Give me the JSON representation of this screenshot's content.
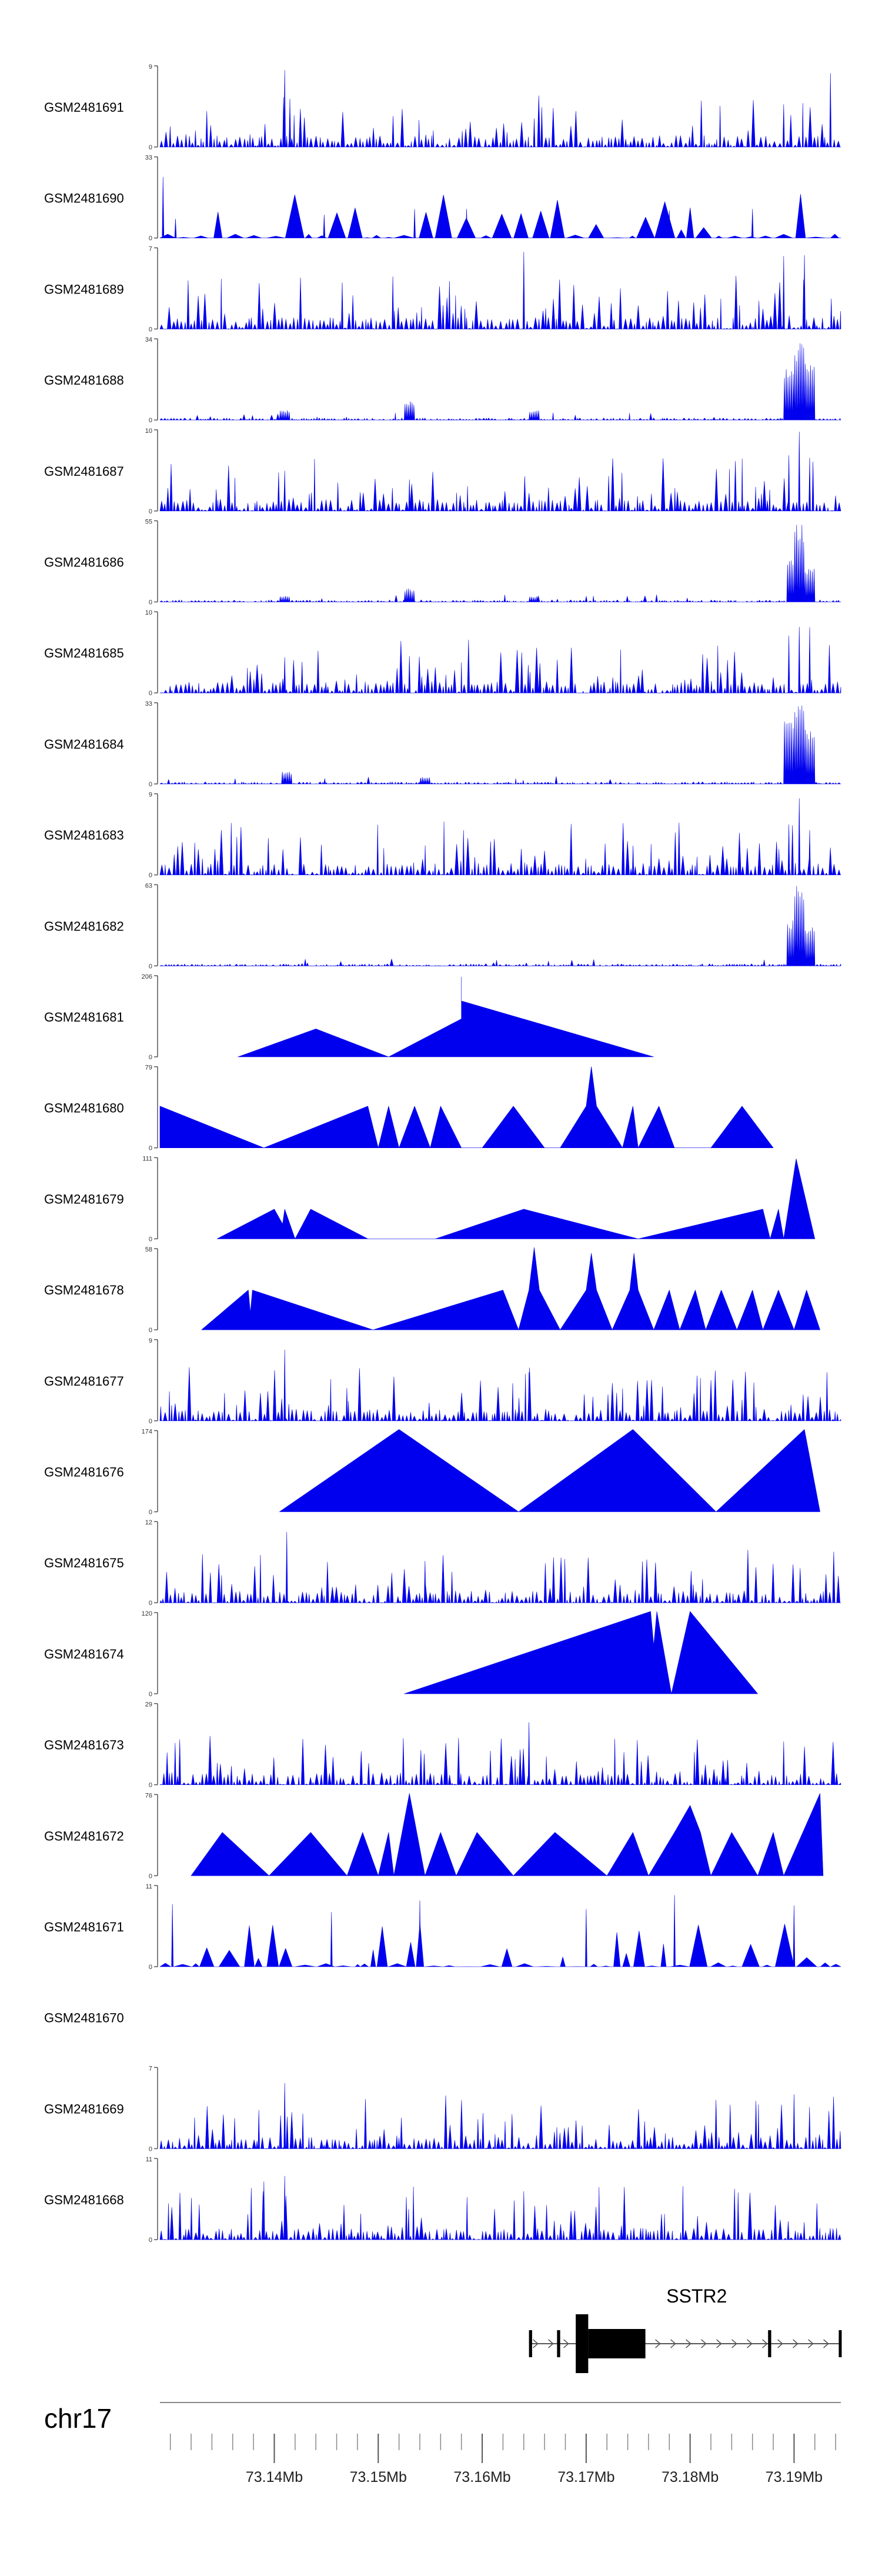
{
  "chart_data": {
    "type": "area",
    "title": "",
    "chromosome": "chr17",
    "x_unit": "Mb",
    "xlim": [
      73.129,
      73.1945
    ],
    "x_ticks": [
      73.14,
      73.15,
      73.16,
      73.17,
      73.18,
      73.19
    ],
    "x_tick_labels": [
      "73.14Mb",
      "73.15Mb",
      "73.16Mb",
      "73.17Mb",
      "73.18Mb",
      "73.19Mb"
    ],
    "minor_tick_step": 0.002,
    "track_fill_color": "#0000ee",
    "axis_color": "#555555",
    "tracks": [
      {
        "name": "GSM2481691",
        "ymax": 9,
        "style": "dense",
        "peaks": [
          [
            73.141,
            8.5
          ],
          [
            73.1415,
            6.5
          ],
          [
            73.165,
            3.5
          ],
          [
            73.1935,
            8.5
          ],
          [
            73.189,
            5.0
          ]
        ]
      },
      {
        "name": "GSM2481690",
        "ymax": 33,
        "style": "sparse",
        "peaks": [
          [
            73.1293,
            27
          ],
          [
            73.1305,
            9
          ],
          [
            73.1448,
            10
          ],
          [
            73.1535,
            12
          ],
          [
            73.1585,
            12
          ],
          [
            73.178,
            12
          ],
          [
            73.186,
            12
          ]
        ]
      },
      {
        "name": "GSM2481689",
        "ymax": 7,
        "style": "dense",
        "peaks": [
          [
            73.164,
            6.8
          ],
          [
            73.189,
            6.5
          ],
          [
            73.191,
            6.9
          ]
        ]
      },
      {
        "name": "GSM2481688",
        "ymax": 34,
        "style": "peaked",
        "peaks": [
          [
            73.141,
            4
          ],
          [
            73.153,
            8
          ],
          [
            73.165,
            4
          ],
          [
            73.1895,
            22
          ],
          [
            73.1905,
            32
          ],
          [
            73.1915,
            25
          ]
        ]
      },
      {
        "name": "GSM2481687",
        "ymax": 10,
        "style": "dense",
        "peaks": [
          [
            73.141,
            5
          ],
          [
            73.153,
            5
          ],
          [
            73.1895,
            8
          ],
          [
            73.1905,
            9.8
          ],
          [
            73.1915,
            8
          ]
        ]
      },
      {
        "name": "GSM2481686",
        "ymax": 55,
        "style": "peaked",
        "peaks": [
          [
            73.141,
            4
          ],
          [
            73.153,
            9
          ],
          [
            73.165,
            4
          ],
          [
            73.1898,
            30
          ],
          [
            73.1905,
            53
          ],
          [
            73.1915,
            25
          ]
        ]
      },
      {
        "name": "GSM2481685",
        "ymax": 10,
        "style": "dense",
        "peaks": [
          [
            73.141,
            5
          ],
          [
            73.153,
            5
          ],
          [
            73.1895,
            8
          ],
          [
            73.1905,
            9.8
          ],
          [
            73.1915,
            8
          ]
        ]
      },
      {
        "name": "GSM2481684",
        "ymax": 33,
        "style": "peaked",
        "peaks": [
          [
            73.1412,
            5
          ],
          [
            73.1545,
            3
          ],
          [
            73.1895,
            26
          ],
          [
            73.1905,
            32
          ],
          [
            73.1915,
            22
          ]
        ]
      },
      {
        "name": "GSM2481683",
        "ymax": 9,
        "style": "dense",
        "peaks": [
          [
            73.1895,
            7
          ],
          [
            73.1905,
            8.8
          ],
          [
            73.1915,
            6
          ]
        ]
      },
      {
        "name": "GSM2481682",
        "ymax": 63,
        "style": "peaked",
        "peaks": [
          [
            73.1898,
            35
          ],
          [
            73.1905,
            62
          ],
          [
            73.1915,
            30
          ]
        ]
      },
      {
        "name": "GSM2481681",
        "ymax": 206,
        "style": "polygon",
        "points": [
          [
            73.1365,
            0
          ],
          [
            73.144,
            70
          ],
          [
            73.151,
            0
          ],
          [
            73.158,
            95
          ],
          [
            73.158,
            200
          ],
          [
            73.158,
            140
          ],
          [
            73.1765,
            0
          ]
        ]
      },
      {
        "name": "GSM2481680",
        "ymax": 79,
        "style": "polygon",
        "points": [
          [
            73.129,
            40
          ],
          [
            73.139,
            0
          ],
          [
            73.149,
            40
          ],
          [
            73.15,
            0
          ],
          [
            73.151,
            40
          ],
          [
            73.152,
            0
          ],
          [
            73.1535,
            40
          ],
          [
            73.155,
            0
          ],
          [
            73.156,
            40
          ],
          [
            73.158,
            0
          ],
          [
            73.16,
            0
          ],
          [
            73.163,
            40
          ],
          [
            73.166,
            0
          ],
          [
            73.1675,
            0
          ],
          [
            73.17,
            40
          ],
          [
            73.1705,
            78
          ],
          [
            73.171,
            40
          ],
          [
            73.1735,
            0
          ],
          [
            73.1745,
            40
          ],
          [
            73.175,
            0
          ],
          [
            73.177,
            40
          ],
          [
            73.1785,
            0
          ],
          [
            73.182,
            0
          ],
          [
            73.185,
            40
          ],
          [
            73.188,
            0
          ]
        ]
      },
      {
        "name": "GSM2481679",
        "ymax": 111,
        "style": "polygon",
        "points": [
          [
            73.1345,
            0
          ],
          [
            73.14,
            40
          ],
          [
            73.1408,
            20
          ],
          [
            73.141,
            40
          ],
          [
            73.142,
            0
          ],
          [
            73.1435,
            40
          ],
          [
            73.149,
            0
          ],
          [
            73.1555,
            0
          ],
          [
            73.164,
            40
          ],
          [
            73.175,
            0
          ],
          [
            73.187,
            40
          ],
          [
            73.1877,
            0
          ],
          [
            73.1885,
            40
          ],
          [
            73.189,
            0
          ],
          [
            73.1902,
            108
          ],
          [
            73.192,
            0
          ]
        ]
      },
      {
        "name": "GSM2481678",
        "ymax": 58,
        "style": "polygon",
        "points": [
          [
            73.133,
            0
          ],
          [
            73.1375,
            28
          ],
          [
            73.1377,
            12
          ],
          [
            73.1379,
            28
          ],
          [
            73.1495,
            0
          ],
          [
            73.162,
            28
          ],
          [
            73.1635,
            0
          ],
          [
            73.1645,
            28
          ],
          [
            73.165,
            58
          ],
          [
            73.1655,
            28
          ],
          [
            73.1675,
            0
          ],
          [
            73.17,
            28
          ],
          [
            73.1705,
            54
          ],
          [
            73.171,
            28
          ],
          [
            73.1725,
            0
          ],
          [
            73.1742,
            28
          ],
          [
            73.1746,
            54
          ],
          [
            73.175,
            28
          ],
          [
            73.1765,
            0
          ],
          [
            73.178,
            28
          ],
          [
            73.179,
            0
          ],
          [
            73.1805,
            28
          ],
          [
            73.1815,
            0
          ],
          [
            73.183,
            28
          ],
          [
            73.1845,
            0
          ],
          [
            73.186,
            28
          ],
          [
            73.187,
            0
          ],
          [
            73.1885,
            28
          ],
          [
            73.19,
            0
          ],
          [
            73.1912,
            28
          ],
          [
            73.1925,
            0
          ]
        ]
      },
      {
        "name": "GSM2481677",
        "ymax": 9,
        "style": "dense",
        "peaks": [
          [
            73.141,
            8.8
          ],
          [
            73.1645,
            5.5
          ],
          [
            73.185,
            3
          ]
        ]
      },
      {
        "name": "GSM2481676",
        "ymax": 174,
        "style": "polygon",
        "points": [
          [
            73.1405,
            0
          ],
          [
            73.152,
            174
          ],
          [
            73.1635,
            0
          ],
          [
            73.1745,
            174
          ],
          [
            73.1825,
            0
          ],
          [
            73.191,
            174
          ],
          [
            73.1925,
            0
          ]
        ]
      },
      {
        "name": "GSM2481675",
        "ymax": 12,
        "style": "dense",
        "peaks": [
          [
            73.1412,
            11.5
          ],
          [
            73.1412,
            9
          ],
          [
            73.1545,
            7
          ]
        ]
      },
      {
        "name": "GSM2481674",
        "ymax": 120,
        "style": "polygon",
        "points": [
          [
            73.1525,
            0
          ],
          [
            73.1762,
            120
          ],
          [
            73.1765,
            70
          ],
          [
            73.1768,
            120
          ],
          [
            73.1782,
            0
          ],
          [
            73.18,
            120
          ],
          [
            73.1865,
            0
          ]
        ]
      },
      {
        "name": "GSM2481673",
        "ymax": 29,
        "style": "dense",
        "peaks": [
          [
            73.1645,
            28
          ],
          [
            73.1645,
            18
          ],
          [
            73.189,
            16
          ],
          [
            73.191,
            14
          ]
        ]
      },
      {
        "name": "GSM2481672",
        "ymax": 76,
        "style": "polygon",
        "points": [
          [
            73.132,
            0
          ],
          [
            73.135,
            40
          ],
          [
            73.1395,
            0
          ],
          [
            73.1435,
            40
          ],
          [
            73.147,
            0
          ],
          [
            73.1485,
            40
          ],
          [
            73.15,
            0
          ],
          [
            73.151,
            40
          ],
          [
            73.1515,
            0
          ],
          [
            73.153,
            76
          ],
          [
            73.1545,
            0
          ],
          [
            73.156,
            40
          ],
          [
            73.1575,
            0
          ],
          [
            73.1595,
            40
          ],
          [
            73.163,
            0
          ],
          [
            73.167,
            40
          ],
          [
            73.172,
            0
          ],
          [
            73.1745,
            40
          ],
          [
            73.176,
            0
          ],
          [
            73.1785,
            40
          ],
          [
            73.18,
            65
          ],
          [
            73.181,
            40
          ],
          [
            73.182,
            0
          ],
          [
            73.184,
            40
          ],
          [
            73.1865,
            0
          ],
          [
            73.188,
            40
          ],
          [
            73.189,
            0
          ],
          [
            73.1925,
            76
          ],
          [
            73.1928,
            0
          ]
        ]
      },
      {
        "name": "GSM2481671",
        "ymax": 11,
        "style": "sparse",
        "peaks": [
          [
            73.1302,
            10
          ],
          [
            73.1455,
            8
          ],
          [
            73.154,
            10
          ],
          [
            73.17,
            9
          ],
          [
            73.1785,
            10
          ],
          [
            73.19,
            9
          ]
        ]
      },
      {
        "name": "GSM2481670",
        "ymax": null,
        "style": "empty",
        "peaks": []
      },
      {
        "name": "GSM2481669",
        "ymax": 7,
        "style": "dense",
        "peaks": [
          [
            73.141,
            6.8
          ],
          [
            73.19,
            5.0
          ]
        ]
      },
      {
        "name": "GSM2481668",
        "ymax": 11,
        "style": "dense",
        "peaks": [
          [
            73.141,
            10
          ],
          [
            73.139,
            8
          ],
          [
            73.164,
            7
          ]
        ]
      }
    ],
    "gene": {
      "name": "SSTR2",
      "start": 73.1645,
      "end": 73.1945,
      "strand": "+",
      "exons": [
        [
          73.1645,
          73.1648,
          "thin"
        ],
        [
          73.1672,
          73.1675,
          "thin"
        ],
        [
          73.169,
          73.1702,
          "thick"
        ],
        [
          73.1702,
          73.1757,
          "utr"
        ],
        [
          73.1875,
          73.1878,
          "thin"
        ],
        [
          73.1943,
          73.1945,
          "thin"
        ]
      ]
    },
    "zero_label": "0"
  }
}
